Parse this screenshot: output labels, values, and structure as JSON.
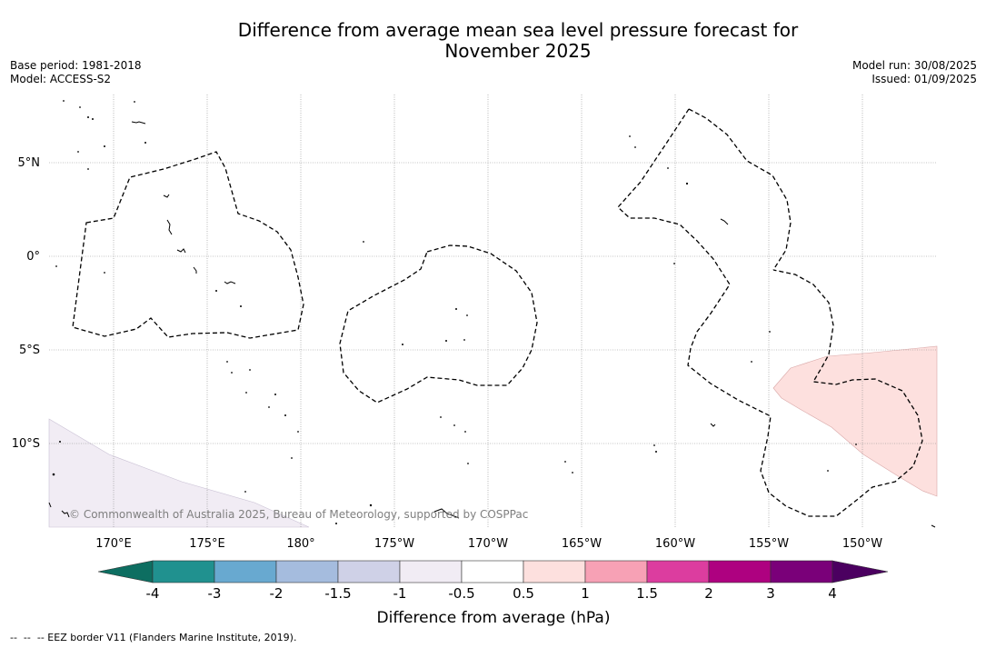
{
  "title_line1": "Difference from average mean sea level pressure forecast for",
  "title_line2": "November 2025",
  "base_period": "Base period: 1981-2018",
  "model": "Model: ACCESS-S2",
  "model_run": "Model run: 30/08/2025",
  "issued": "Issued: 01/09/2025",
  "copyright": "© Commonwealth of Australia 2025, Bureau of Meteorology, supported by COSPPac",
  "lon_labels": [
    "170°E",
    "175°E",
    "180°",
    "175°W",
    "170°W",
    "165°W",
    "160°W",
    "155°W",
    "150°W"
  ],
  "lat_labels": [
    "5°N",
    "0°",
    "5°S",
    "10°S"
  ],
  "colorbar": {
    "label": "Difference from average (hPa)",
    "ticks": [
      "-4",
      "-3",
      "-2",
      "-1.5",
      "-1",
      "-0.5",
      "0.5",
      "1",
      "1.5",
      "2",
      "3",
      "4"
    ],
    "bins": [
      {
        "range": "< -4",
        "color": "#0d6e61"
      },
      {
        "range": "-4 to -3",
        "color": "#20918f"
      },
      {
        "range": "-3 to -2",
        "color": "#68a9d0"
      },
      {
        "range": "-2 to -1.5",
        "color": "#a5bcde"
      },
      {
        "range": "-1.5 to -1",
        "color": "#cfd1e7"
      },
      {
        "range": "-1 to -0.5",
        "color": "#f1ecf4"
      },
      {
        "range": "-0.5 to 0.5",
        "color": "#ffffff"
      },
      {
        "range": "0.5 to 1",
        "color": "#fde0de"
      },
      {
        "range": "1 to 1.5",
        "color": "#f7a1b5"
      },
      {
        "range": "1.5 to 2",
        "color": "#dc3d9f"
      },
      {
        "range": "2 to 3",
        "color": "#ae0180"
      },
      {
        "range": "3 to 4",
        "color": "#7a0079"
      },
      {
        "range": "> 4",
        "color": "#4b0060"
      }
    ]
  },
  "legend_note": "--  --  -- EEZ border V11 (Flanders Marine Institute, 2019).",
  "anomaly_regions": [
    {
      "name": "negative-anomaly-southwest",
      "bin": "-1 to -0.5"
    },
    {
      "name": "positive-anomaly-southeast",
      "bin": "0.5 to 1"
    }
  ]
}
